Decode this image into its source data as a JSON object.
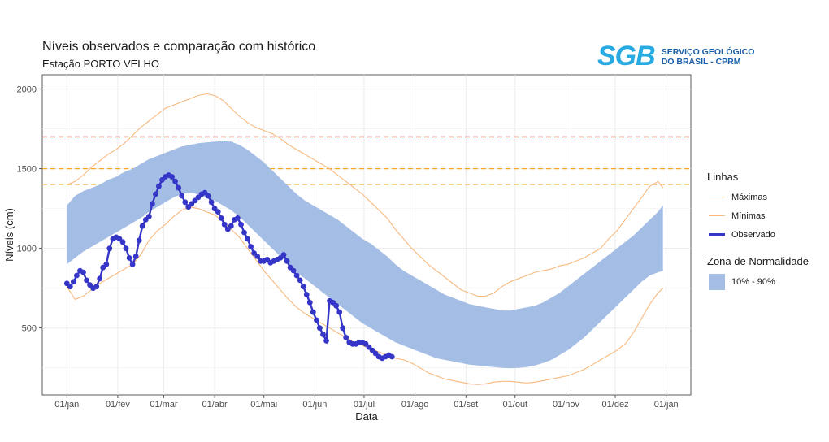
{
  "header": {
    "title": "Níveis observados e comparação com histórico",
    "subtitle": "Estação PORTO VELHO"
  },
  "logo": {
    "mark": "SGB",
    "line1": "SERVIÇO GEOLÓGICO",
    "line2": "DO BRASIL - CPRM"
  },
  "colors": {
    "band": "#a4bde5",
    "historic": "#f7b97e",
    "observed": "#3535c8",
    "ref_red": "#e3504a",
    "ref_orange": "#f5a623",
    "ref_light": "#f9c86e",
    "grid": "#ebebeb"
  },
  "chart_data": {
    "type": "line",
    "title": "Níveis observados e comparação com histórico",
    "subtitle": "Estação PORTO VELHO",
    "xlabel": "Data",
    "ylabel": "Níveis (cm)",
    "xlim": [
      -15,
      380
    ],
    "ylim": [
      80,
      2090
    ],
    "x_ticks": [
      {
        "day": 0,
        "label": "01/jan"
      },
      {
        "day": 31,
        "label": "01/fev"
      },
      {
        "day": 59,
        "label": "01/mar"
      },
      {
        "day": 90,
        "label": "01/abr"
      },
      {
        "day": 120,
        "label": "01/mai"
      },
      {
        "day": 151,
        "label": "01/jun"
      },
      {
        "day": 181,
        "label": "01/jul"
      },
      {
        "day": 212,
        "label": "01/ago"
      },
      {
        "day": 243,
        "label": "01/set"
      },
      {
        "day": 273,
        "label": "01/out"
      },
      {
        "day": 304,
        "label": "01/nov"
      },
      {
        "day": 334,
        "label": "01/dez"
      },
      {
        "day": 365,
        "label": "01/jan"
      }
    ],
    "y_ticks": [
      {
        "value": 500,
        "label": "500"
      },
      {
        "value": 1000,
        "label": "1000"
      },
      {
        "value": 1500,
        "label": "1500"
      },
      {
        "value": 2000,
        "label": "2000"
      }
    ],
    "reference_lines": [
      {
        "value": 1700,
        "color": "red"
      },
      {
        "value": 1500,
        "color": "orange"
      },
      {
        "value": 1400,
        "color": "light-orange"
      }
    ],
    "band": {
      "name": "10% - 90%",
      "x": [
        0,
        5,
        10,
        15,
        20,
        25,
        30,
        35,
        40,
        45,
        50,
        55,
        60,
        65,
        70,
        75,
        80,
        85,
        90,
        95,
        100,
        105,
        110,
        115,
        120,
        125,
        130,
        135,
        140,
        145,
        150,
        155,
        160,
        165,
        170,
        175,
        180,
        185,
        190,
        195,
        200,
        205,
        210,
        215,
        220,
        225,
        230,
        235,
        240,
        245,
        250,
        255,
        260,
        265,
        270,
        275,
        280,
        285,
        290,
        295,
        300,
        305,
        310,
        315,
        320,
        325,
        330,
        335,
        340,
        345,
        350,
        355,
        360,
        363
      ],
      "upper": [
        1270,
        1330,
        1360,
        1380,
        1400,
        1430,
        1450,
        1480,
        1500,
        1530,
        1560,
        1580,
        1600,
        1620,
        1640,
        1650,
        1660,
        1665,
        1670,
        1672,
        1670,
        1650,
        1620,
        1580,
        1540,
        1490,
        1440,
        1390,
        1340,
        1300,
        1270,
        1240,
        1210,
        1180,
        1140,
        1100,
        1060,
        1030,
        990,
        950,
        900,
        860,
        830,
        800,
        770,
        740,
        710,
        690,
        670,
        650,
        640,
        630,
        620,
        610,
        610,
        620,
        630,
        640,
        660,
        690,
        720,
        760,
        800,
        840,
        880,
        920,
        960,
        1000,
        1040,
        1080,
        1130,
        1180,
        1230,
        1270
      ],
      "lower": [
        900,
        940,
        980,
        1010,
        1040,
        1070,
        1100,
        1130,
        1160,
        1190,
        1230,
        1260,
        1290,
        1320,
        1340,
        1350,
        1340,
        1320,
        1300,
        1270,
        1240,
        1200,
        1150,
        1100,
        1050,
        1000,
        950,
        900,
        850,
        810,
        770,
        730,
        690,
        650,
        610,
        570,
        530,
        500,
        470,
        440,
        410,
        390,
        370,
        350,
        330,
        310,
        300,
        290,
        280,
        270,
        265,
        260,
        255,
        250,
        248,
        250,
        255,
        265,
        280,
        300,
        330,
        360,
        400,
        440,
        490,
        540,
        590,
        640,
        690,
        740,
        790,
        830,
        850,
        860
      ]
    },
    "series": [
      {
        "name": "Máximas",
        "x": [
          0,
          5,
          10,
          15,
          20,
          25,
          30,
          35,
          40,
          45,
          50,
          55,
          60,
          65,
          70,
          75,
          80,
          85,
          90,
          95,
          100,
          105,
          110,
          115,
          120,
          125,
          130,
          135,
          140,
          145,
          150,
          155,
          160,
          165,
          170,
          175,
          180,
          185,
          190,
          195,
          200,
          205,
          210,
          215,
          220,
          225,
          230,
          235,
          240,
          245,
          250,
          255,
          260,
          265,
          270,
          275,
          280,
          285,
          290,
          295,
          300,
          305,
          310,
          315,
          320,
          325,
          330,
          335,
          340,
          345,
          350,
          355,
          360,
          363
        ],
        "values": [
          1400,
          1420,
          1460,
          1510,
          1550,
          1590,
          1620,
          1660,
          1710,
          1760,
          1800,
          1840,
          1880,
          1900,
          1920,
          1940,
          1960,
          1970,
          1960,
          1930,
          1880,
          1830,
          1790,
          1760,
          1740,
          1720,
          1690,
          1650,
          1620,
          1590,
          1560,
          1530,
          1500,
          1460,
          1420,
          1380,
          1340,
          1290,
          1240,
          1190,
          1120,
          1060,
          1000,
          950,
          900,
          860,
          820,
          780,
          740,
          720,
          700,
          700,
          720,
          760,
          790,
          810,
          830,
          850,
          860,
          870,
          890,
          900,
          920,
          940,
          970,
          1000,
          1060,
          1110,
          1180,
          1250,
          1320,
          1390,
          1420,
          1380
        ]
      },
      {
        "name": "Mínimas",
        "x": [
          0,
          5,
          10,
          15,
          20,
          25,
          30,
          35,
          40,
          45,
          50,
          55,
          60,
          65,
          70,
          75,
          80,
          85,
          90,
          95,
          100,
          105,
          110,
          115,
          120,
          125,
          130,
          135,
          140,
          145,
          150,
          155,
          160,
          165,
          170,
          175,
          180,
          185,
          190,
          195,
          200,
          205,
          210,
          215,
          220,
          225,
          230,
          235,
          240,
          245,
          250,
          255,
          260,
          265,
          270,
          275,
          280,
          285,
          290,
          295,
          300,
          305,
          310,
          315,
          320,
          325,
          330,
          335,
          340,
          345,
          350,
          355,
          360,
          363
        ],
        "values": [
          760,
          680,
          700,
          740,
          780,
          810,
          840,
          870,
          900,
          960,
          1050,
          1110,
          1150,
          1200,
          1240,
          1260,
          1250,
          1230,
          1210,
          1170,
          1120,
          1070,
          1000,
          930,
          860,
          800,
          740,
          680,
          630,
          590,
          560,
          530,
          500,
          470,
          440,
          410,
          390,
          370,
          350,
          330,
          310,
          300,
          280,
          250,
          220,
          200,
          180,
          170,
          160,
          150,
          145,
          150,
          160,
          165,
          165,
          160,
          155,
          160,
          170,
          180,
          190,
          200,
          220,
          240,
          270,
          300,
          330,
          360,
          400,
          470,
          560,
          650,
          720,
          750
        ]
      },
      {
        "name": "Observado",
        "x": [
          0,
          2,
          4,
          6,
          8,
          10,
          12,
          14,
          16,
          18,
          20,
          22,
          24,
          26,
          28,
          30,
          32,
          34,
          36,
          38,
          40,
          42,
          44,
          46,
          48,
          50,
          52,
          54,
          56,
          58,
          60,
          62,
          64,
          66,
          68,
          70,
          72,
          74,
          76,
          78,
          80,
          82,
          84,
          86,
          88,
          90,
          92,
          94,
          96,
          98,
          100,
          102,
          104,
          106,
          108,
          110,
          112,
          114,
          116,
          118,
          120,
          122,
          124,
          126,
          128,
          130,
          132,
          134,
          136,
          138,
          140,
          142,
          144,
          146,
          148,
          150,
          152,
          154,
          156,
          158,
          160,
          162,
          164,
          166,
          168,
          170,
          172,
          174,
          176,
          178,
          180,
          182,
          184,
          186,
          188,
          190,
          192,
          194,
          196,
          198
        ],
        "values": [
          780,
          760,
          790,
          830,
          860,
          850,
          800,
          770,
          750,
          760,
          810,
          880,
          900,
          1000,
          1060,
          1070,
          1060,
          1040,
          1000,
          940,
          900,
          950,
          1050,
          1140,
          1180,
          1200,
          1280,
          1340,
          1390,
          1430,
          1450,
          1460,
          1450,
          1420,
          1380,
          1330,
          1290,
          1260,
          1280,
          1300,
          1320,
          1340,
          1350,
          1330,
          1290,
          1250,
          1230,
          1190,
          1150,
          1120,
          1140,
          1180,
          1190,
          1150,
          1100,
          1060,
          1010,
          970,
          950,
          920,
          920,
          930,
          910,
          920,
          930,
          940,
          960,
          920,
          880,
          860,
          830,
          800,
          760,
          710,
          660,
          600,
          550,
          500,
          460,
          420,
          670,
          660,
          640,
          600,
          500,
          440,
          410,
          400,
          400,
          410,
          410,
          400,
          380,
          360,
          340,
          320,
          310,
          320,
          330,
          320
        ]
      }
    ],
    "legend": {
      "lines_title": "Linhas",
      "entries": [
        "Máximas",
        "Mínimas",
        "Observado"
      ],
      "band_title": "Zona de Normalidade",
      "band_entry": "10% - 90%",
      "position": "right"
    }
  }
}
